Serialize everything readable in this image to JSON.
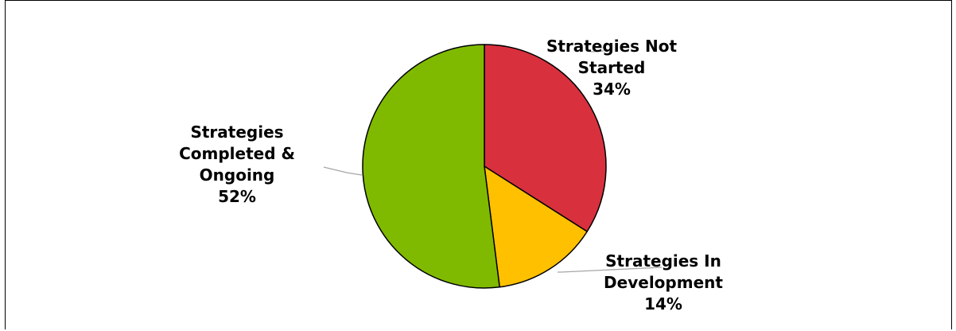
{
  "chart_data": {
    "type": "pie",
    "title": "",
    "slices": [
      {
        "name": "Strategies Not Started",
        "value": 34,
        "color": "#d9303e"
      },
      {
        "name": "Strategies In Development",
        "value": 14,
        "color": "#ffc000"
      },
      {
        "name": "Strategies Completed & Ongoing",
        "value": 52,
        "color": "#7fba00"
      }
    ],
    "labels": [
      {
        "lines": [
          "Strategies Not",
          "Started",
          "34%"
        ]
      },
      {
        "lines": [
          "Strategies In",
          "Development",
          "14%"
        ]
      },
      {
        "lines": [
          "Strategies",
          "Completed &",
          "Ongoing",
          "52%"
        ]
      }
    ],
    "start_angle": "12 o'clock",
    "direction": "clockwise",
    "legend": "none",
    "leader_line_color": "#a6a6a6",
    "slice_border_color": "#000000"
  }
}
